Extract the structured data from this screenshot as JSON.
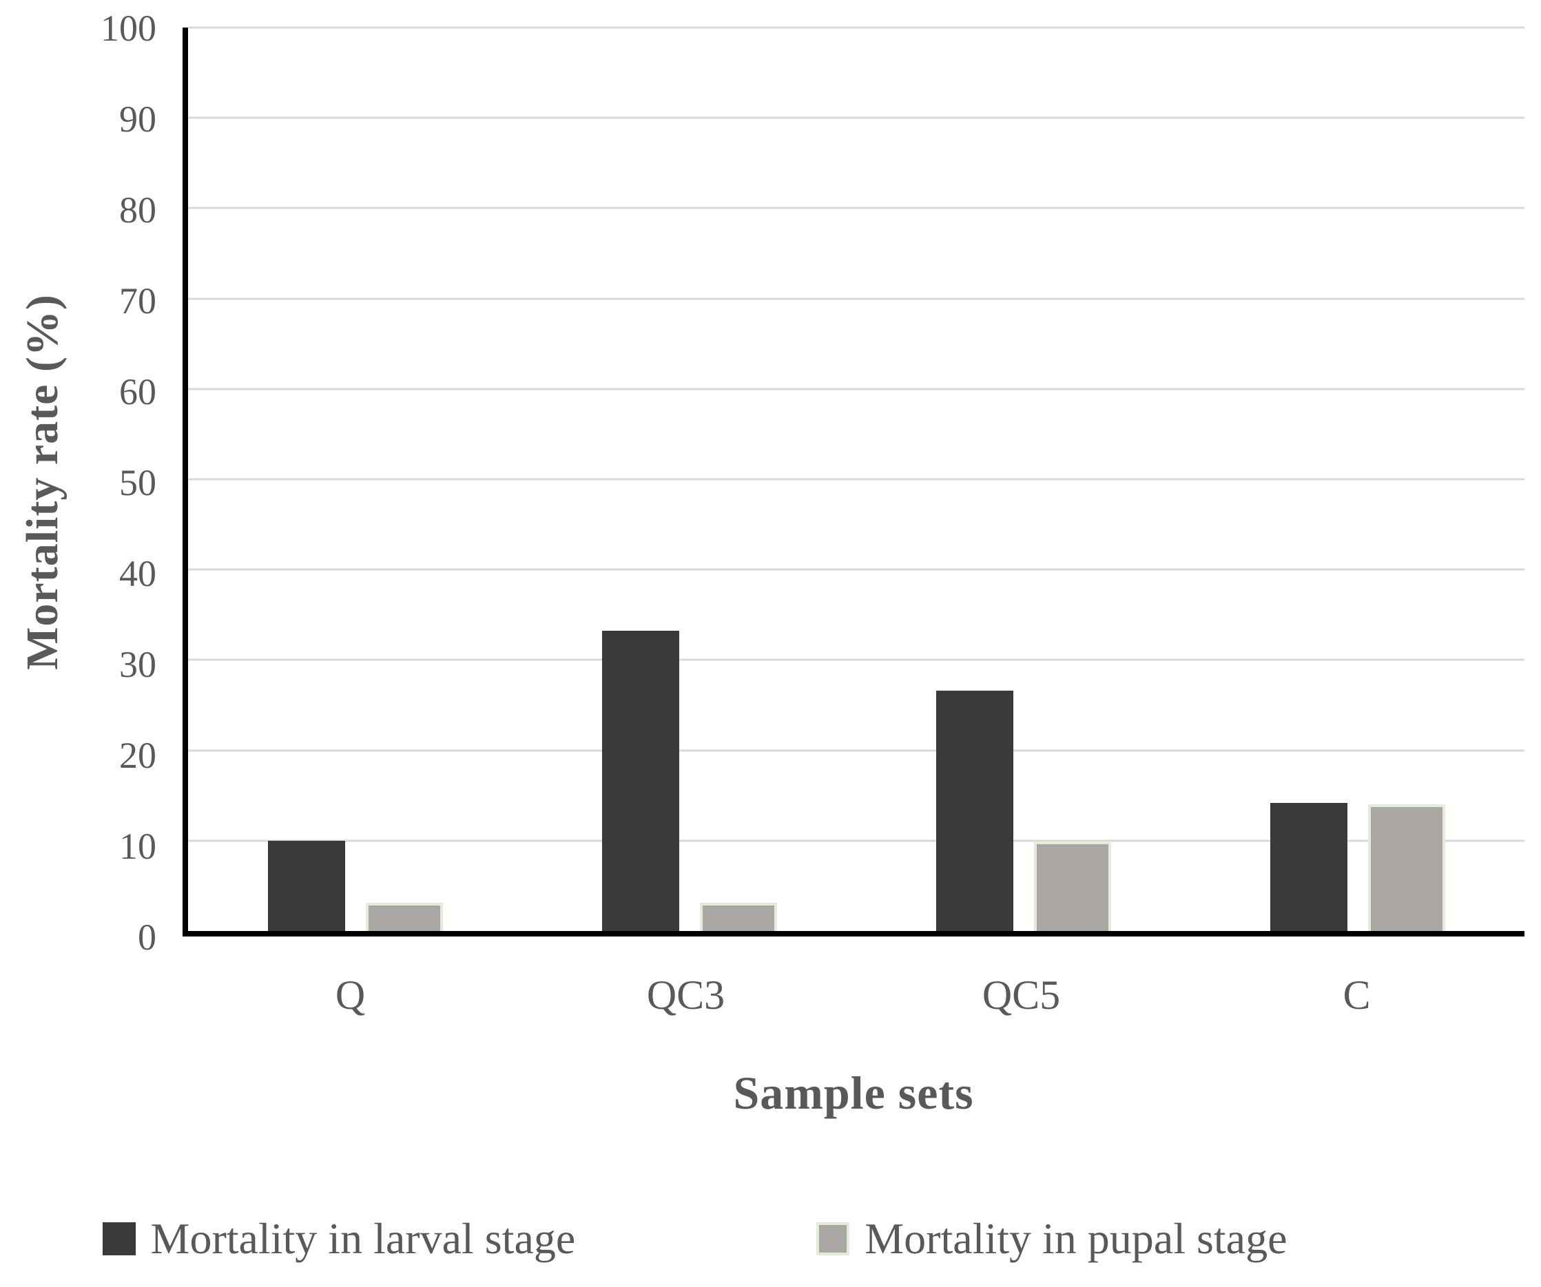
{
  "chart_data": {
    "type": "bar",
    "title": "",
    "xlabel": "Sample sets",
    "ylabel": "Mortality rate (%)",
    "categories": [
      "Q",
      "QC3",
      "QC5",
      "C"
    ],
    "series": [
      {
        "key": "larval",
        "name": "Mortality in larval stage",
        "fill": "#3a3a3a",
        "border": "#3a3a3a",
        "values": [
          10,
          33.2,
          26.6,
          14.2
        ]
      },
      {
        "key": "pupal",
        "name": "Mortality in pupal stage",
        "fill": "#a9a6a3",
        "border": "#e3ecd9",
        "values": [
          3.1,
          3.1,
          9.9,
          14
        ]
      }
    ],
    "ylim": [
      0,
      100
    ],
    "y_ticks": [
      "0",
      "10",
      "20",
      "30",
      "40",
      "50",
      "60",
      "70",
      "80",
      "90",
      "100"
    ],
    "grid": "horizontal",
    "legend_position": "bottom"
  },
  "colors": {
    "text": "#595959",
    "gridline": "#d9d9d9",
    "axis": "#000000",
    "background": "#ffffff"
  }
}
